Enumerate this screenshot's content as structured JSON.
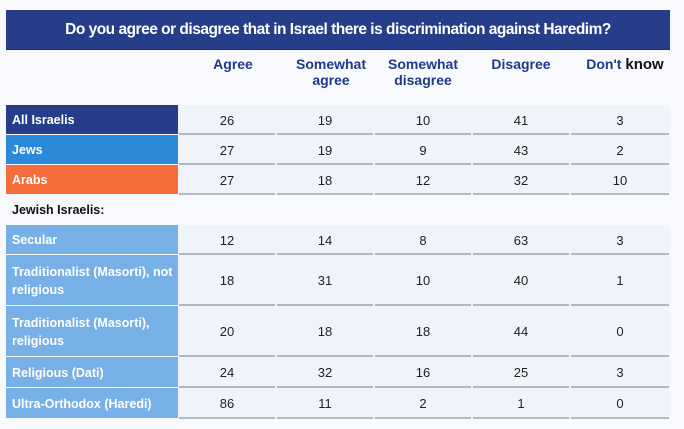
{
  "chart_data": {
    "type": "table",
    "title": "Do you agree or disagree that in Israel there is discrimination against Haredim?",
    "columns": [
      "Agree",
      "Somewhat agree",
      "Somewhat disagree",
      "Disagree",
      "Don't know"
    ],
    "column_labels": [
      {
        "line1": "Agree",
        "line2": ""
      },
      {
        "line1": "Somewhat",
        "line2": "agree"
      },
      {
        "line1": "Somewhat",
        "line2": "disagree"
      },
      {
        "line1": "Disagree",
        "line2": ""
      },
      {
        "line1": "Don't",
        "line2": "know"
      }
    ],
    "subheading": "Jewish Israelis:",
    "rows": [
      {
        "label": "All Israelis",
        "values": [
          26,
          19,
          10,
          41,
          3
        ],
        "color": "#263e8a"
      },
      {
        "label": "Jews",
        "values": [
          27,
          19,
          9,
          43,
          2
        ],
        "color": "#2a89d9"
      },
      {
        "label": "Arabs",
        "values": [
          27,
          18,
          12,
          32,
          10
        ],
        "color": "#f46d3a"
      },
      {
        "label": "Secular",
        "values": [
          12,
          14,
          8,
          63,
          3
        ],
        "color": "#76b0e6"
      },
      {
        "label": "Traditionalist (Masorti), not religious",
        "values": [
          18,
          31,
          10,
          40,
          1
        ],
        "color": "#76b0e6"
      },
      {
        "label": "Traditionalist (Masorti), religious",
        "values": [
          20,
          18,
          18,
          44,
          0
        ],
        "color": "#76b0e6"
      },
      {
        "label": "Religious (Dati)",
        "values": [
          24,
          32,
          16,
          25,
          3
        ],
        "color": "#76b0e6"
      },
      {
        "label": "Ultra-Orthodox (Haredi)",
        "values": [
          86,
          11,
          2,
          1,
          0
        ],
        "color": "#76b0e6"
      }
    ]
  }
}
